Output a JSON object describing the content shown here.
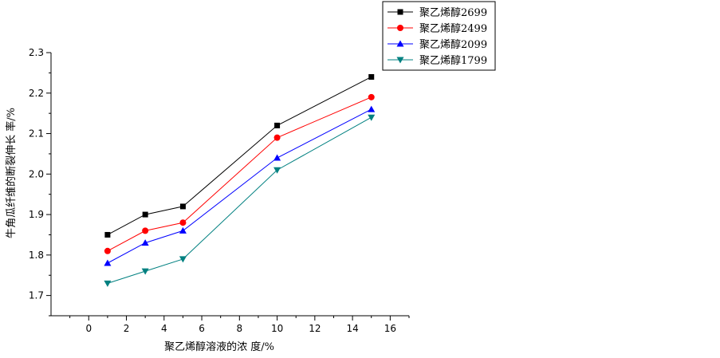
{
  "chart_data": {
    "type": "line",
    "title": "",
    "xlabel": "聚乙烯醇溶液的浓 度/%",
    "ylabel": "牛角瓜纤维的断裂伸长 率/%",
    "xlim": [
      -2,
      17
    ],
    "ylim": [
      1.65,
      2.3
    ],
    "xticks": [
      0,
      2,
      4,
      6,
      8,
      10,
      12,
      14,
      16
    ],
    "yticks": [
      1.7,
      1.8,
      1.9,
      2.0,
      2.1,
      2.2,
      2.3
    ],
    "xtick_labels": [
      "0",
      "2",
      "4",
      "6",
      "8",
      "10",
      "12",
      "14",
      "16"
    ],
    "ytick_labels": [
      "1.7",
      "1.8",
      "1.9",
      "2.0",
      "2.1",
      "2.2",
      "2.3"
    ],
    "x": [
      1,
      3,
      5,
      10,
      15
    ],
    "grid": false,
    "legend_position": "top-right",
    "series": [
      {
        "name": "聚乙烯醇2699",
        "values": [
          1.85,
          1.9,
          1.92,
          2.12,
          2.24
        ],
        "marker": "square",
        "color": "#000000"
      },
      {
        "name": "聚乙烯醇2499",
        "values": [
          1.81,
          1.86,
          1.88,
          2.09,
          2.19
        ],
        "marker": "circle",
        "color": "#ff0000"
      },
      {
        "name": "聚乙烯醇2099",
        "values": [
          1.78,
          1.83,
          1.86,
          2.04,
          2.16
        ],
        "marker": "triangle-up",
        "color": "#0000ff"
      },
      {
        "name": "聚乙烯醇1799",
        "values": [
          1.73,
          1.76,
          1.79,
          2.01,
          2.14
        ],
        "marker": "triangle-down",
        "color": "#008080"
      }
    ]
  }
}
